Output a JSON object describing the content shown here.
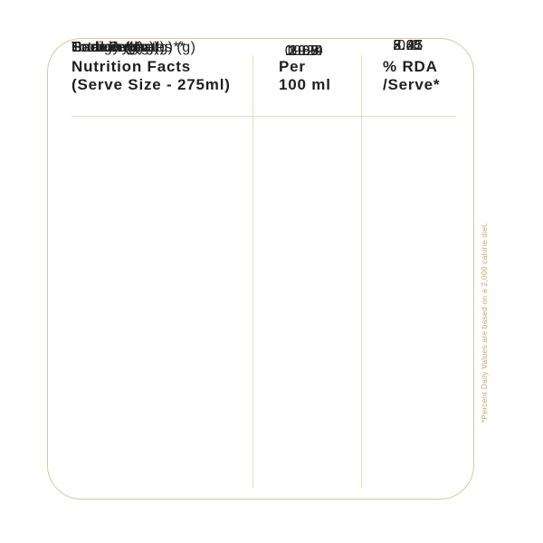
{
  "card": {
    "header": {
      "col1_line1": "Nutrition Facts",
      "col1_line2": "(Serve Size - 275ml)",
      "col2_line1": "Per",
      "col2_line2": "100 ml",
      "col3_line1": "% RDA",
      "col3_line2": "/Serve*"
    },
    "rows": [
      {
        "label": "Energy (Kcal)",
        "per_100ml": "19.29",
        "rda": "2.41"
      },
      {
        "label": "Protein (g)",
        "per_100ml": "1.09",
        "rda": "5.45"
      },
      {
        "label": "Carbohydrates (g)",
        "per_100ml": "3.68",
        "rda": "3.35"
      },
      {
        "label": "Total Sugar (g)**",
        "per_100ml": "2.97",
        "rda": "8.25"
      },
      {
        "label": "Total Fat (g)",
        "per_100ml": "0.024",
        "rda": "0.1"
      },
      {
        "label": "Sodium (mg)",
        "per_100ml": "19.0",
        "rda": "2.07"
      }
    ],
    "footnote": "*Percent Daily Values are based on a 2,000 calorie diet."
  },
  "colors": {
    "border": "#d9c7a0",
    "line": "#eadcbc",
    "text": "#1f1f1f",
    "footnote": "#c6a766",
    "background": "#ffffff"
  }
}
